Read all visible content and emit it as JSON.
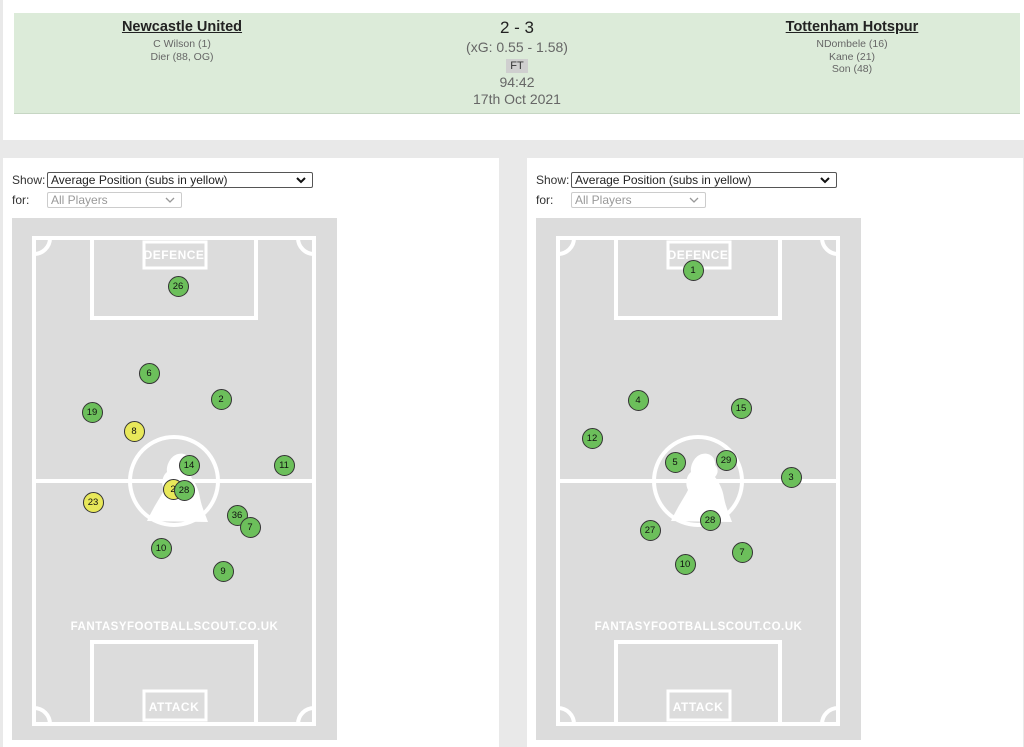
{
  "match": {
    "home": {
      "name": "Newcastle United",
      "scorers": [
        "C Wilson (1)",
        "Dier (88, OG)"
      ]
    },
    "away": {
      "name": "Tottenham Hotspur",
      "scorers": [
        "NDombele (16)",
        "Kane (21)",
        "Son (48)"
      ]
    },
    "score": "2 - 3",
    "xg": "(xG:  0.55 - 1.58)",
    "status": "FT",
    "clock": "94:42",
    "date": "17th Oct 2021"
  },
  "controls": {
    "show_label": "Show:",
    "show_value": "Average Position (subs in yellow)",
    "for_label": "for:",
    "for_value": "All Players"
  },
  "pitch_labels": {
    "defence": "DEFENCE",
    "attack": "ATTACK",
    "site": "FANTASYFOOTBALLSCOUT.CO.UK"
  },
  "colors": {
    "starter": "#6cbf5b",
    "sub": "#e8e85a",
    "scoreboard": "#dcebd9",
    "pitch": "#dcdcdc"
  },
  "home_players": [
    {
      "number": "26",
      "sub": false
    },
    {
      "number": "6",
      "sub": false
    },
    {
      "number": "2",
      "sub": false
    },
    {
      "number": "19",
      "sub": false
    },
    {
      "number": "8",
      "sub": true
    },
    {
      "number": "14",
      "sub": false
    },
    {
      "number": "11",
      "sub": false
    },
    {
      "number": "2",
      "sub": true
    },
    {
      "number": "28",
      "sub": false
    },
    {
      "number": "23",
      "sub": true
    },
    {
      "number": "36",
      "sub": false
    },
    {
      "number": "7",
      "sub": false
    },
    {
      "number": "10",
      "sub": false
    },
    {
      "number": "9",
      "sub": false
    }
  ],
  "away_players": [
    {
      "number": "1",
      "sub": false
    },
    {
      "number": "4",
      "sub": false
    },
    {
      "number": "15",
      "sub": false
    },
    {
      "number": "12",
      "sub": false
    },
    {
      "number": "5",
      "sub": false
    },
    {
      "number": "29",
      "sub": false
    },
    {
      "number": "3",
      "sub": false
    },
    {
      "number": "27",
      "sub": false
    },
    {
      "number": "28",
      "sub": false
    },
    {
      "number": "10",
      "sub": false
    },
    {
      "number": "7",
      "sub": false
    }
  ]
}
